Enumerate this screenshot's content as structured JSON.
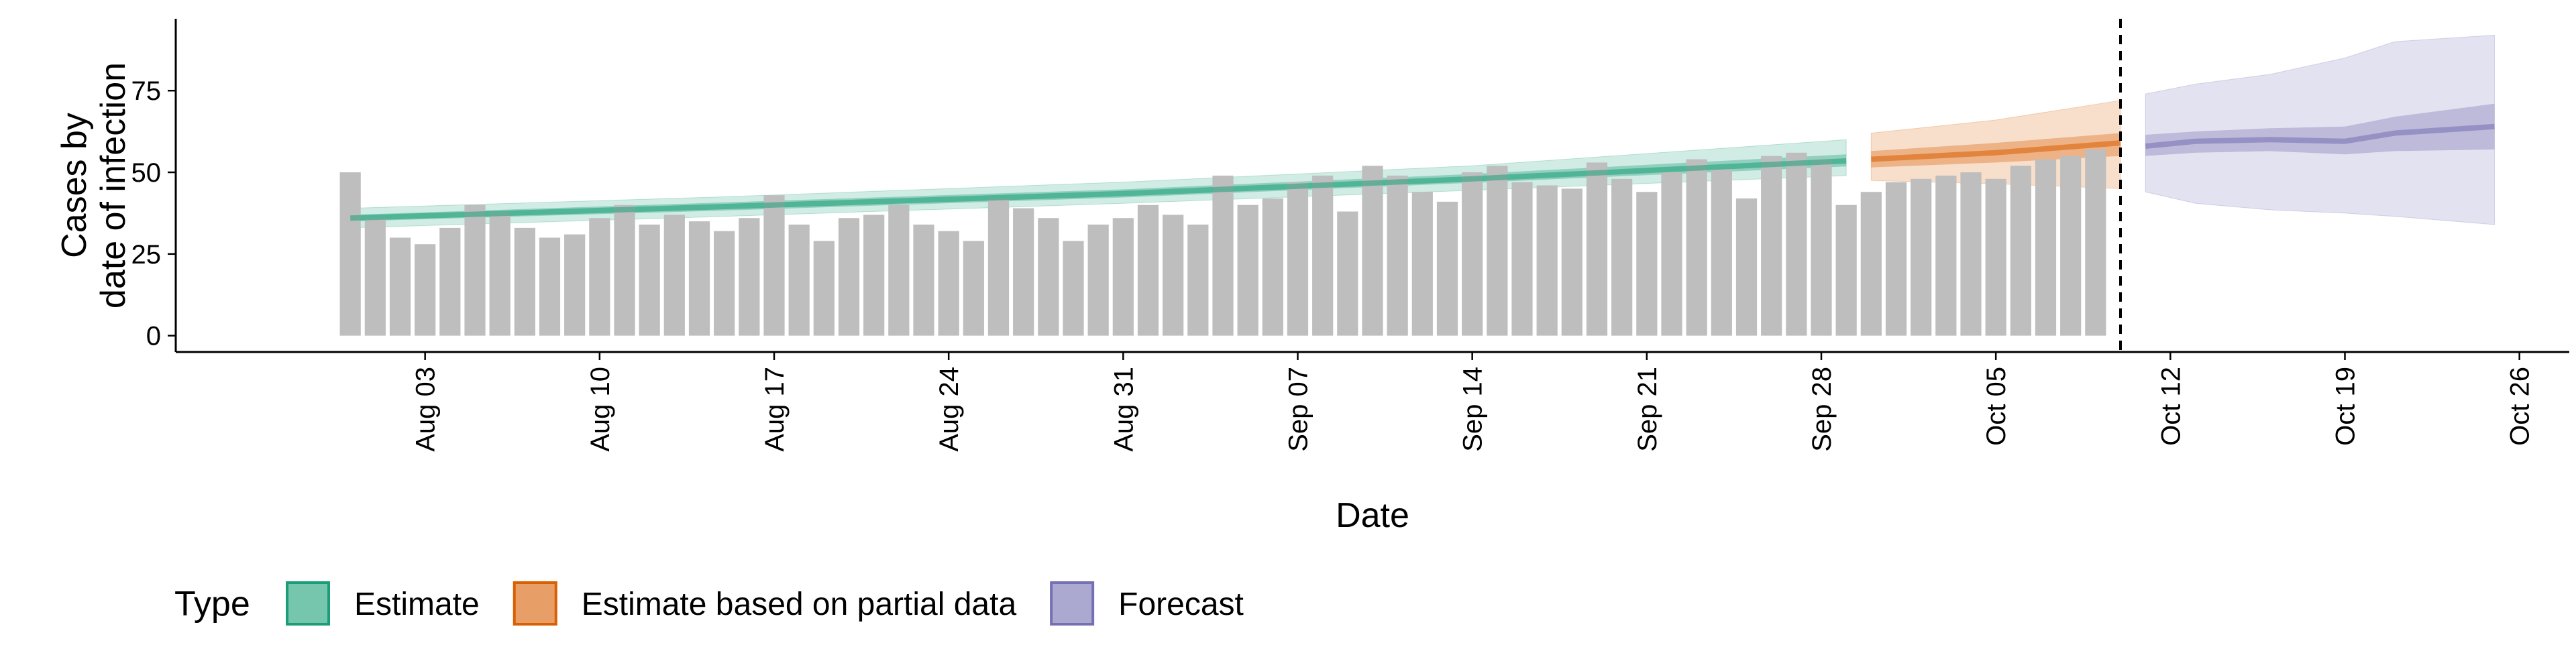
{
  "chart_data": {
    "type": "bar",
    "title": "",
    "xlabel": "Date",
    "ylabel": [
      "Cases by",
      "date of infection"
    ],
    "x_range": [
      "2020-07-24",
      "2020-10-28"
    ],
    "ylim": [
      -5,
      97
    ],
    "yticks": [
      0,
      25,
      50,
      75
    ],
    "xticks": [
      "2020-08-03",
      "2020-08-10",
      "2020-08-17",
      "2020-08-24",
      "2020-08-31",
      "2020-09-07",
      "2020-09-14",
      "2020-09-21",
      "2020-09-28",
      "2020-10-05",
      "2020-10-12",
      "2020-10-19",
      "2020-10-26"
    ],
    "xtick_labels": [
      "Aug 03",
      "Aug 10",
      "Aug 17",
      "Aug 24",
      "Aug 31",
      "Sep 07",
      "Sep 14",
      "Sep 21",
      "Sep 28",
      "Oct 05",
      "Oct 12",
      "Oct 19",
      "Oct 26"
    ],
    "grid": false,
    "legend_position": "bottom",
    "vline_date": "2020-10-10",
    "bars": {
      "color": "#bebebe",
      "start_date": "2020-07-31",
      "values": [
        50,
        36,
        30,
        28,
        33,
        40,
        38,
        33,
        30,
        31,
        36,
        40,
        34,
        37,
        35,
        32,
        36,
        43,
        34,
        29,
        36,
        37,
        40,
        34,
        32,
        29,
        42,
        39,
        36,
        29,
        34,
        36,
        40,
        37,
        34,
        49,
        40,
        42,
        47,
        49,
        38,
        52,
        49,
        44,
        41,
        50,
        52,
        47,
        46,
        45,
        53,
        48,
        44,
        50,
        54,
        51,
        42,
        55,
        56,
        54,
        40,
        44,
        47,
        48,
        49,
        50,
        48,
        52,
        54,
        55,
        57
      ]
    },
    "series": [
      {
        "name": "Estimate",
        "color": "#1b9e77",
        "x": [
          "2020-07-31",
          "2020-08-15",
          "2020-08-31",
          "2020-09-14",
          "2020-09-29"
        ],
        "median": [
          36,
          39.5,
          43.5,
          48,
          53.5
        ],
        "inner": {
          "lower": [
            35,
            38.3,
            42.3,
            46.8,
            51.8
          ],
          "upper": [
            37,
            40.8,
            44.8,
            49.5,
            55.5
          ]
        },
        "outer": {
          "lower": [
            33,
            36.5,
            40.5,
            44.5,
            49
          ],
          "upper": [
            39,
            42.5,
            47,
            52,
            60
          ]
        }
      },
      {
        "name": "Estimate based on partial data",
        "color": "#d95f02",
        "x": [
          "2020-09-30",
          "2020-10-05",
          "2020-10-10"
        ],
        "median": [
          54,
          56,
          59
        ],
        "inner": {
          "lower": [
            51.5,
            53,
            55
          ],
          "upper": [
            56.5,
            59,
            62
          ]
        },
        "outer": {
          "lower": [
            47.5,
            46.5,
            45
          ],
          "upper": [
            62,
            66,
            72
          ]
        }
      },
      {
        "name": "Forecast",
        "color": "#7570b3",
        "x": [
          "2020-10-11",
          "2020-10-13",
          "2020-10-16",
          "2020-10-19",
          "2020-10-21",
          "2020-10-25"
        ],
        "median": [
          58,
          59.5,
          60,
          59.5,
          62,
          64
        ],
        "inner": {
          "lower": [
            55,
            56,
            56.5,
            55.5,
            56.5,
            57
          ],
          "upper": [
            61.5,
            62.5,
            63.5,
            64,
            67,
            71
          ]
        },
        "outer": {
          "lower": [
            44,
            40.5,
            38.5,
            37.5,
            36.5,
            34
          ],
          "upper": [
            74,
            77,
            80,
            85,
            90,
            92
          ]
        }
      }
    ],
    "legend": {
      "title": "Type",
      "items": [
        "Estimate",
        "Estimate based on partial data",
        "Forecast"
      ]
    }
  }
}
